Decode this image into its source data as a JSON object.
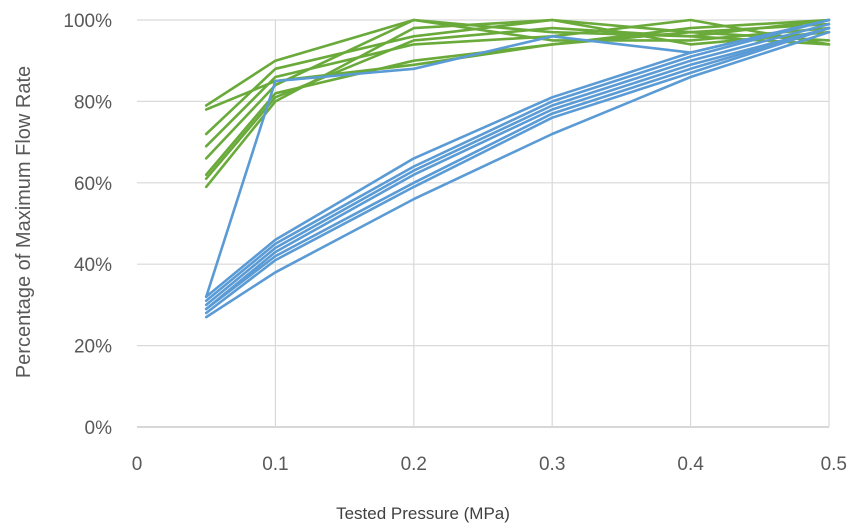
{
  "chart_data": {
    "type": "line",
    "xlabel": "Tested Pressure (MPa)",
    "ylabel": "Percentage of Maximum Flow Rate",
    "xlim": [
      0,
      0.5
    ],
    "ylim": [
      0,
      100
    ],
    "x_ticks": [
      "0",
      "0.1",
      "0.2",
      "0.3",
      "0.4",
      "0.5"
    ],
    "y_ticks": [
      "0%",
      "20%",
      "40%",
      "60%",
      "80%",
      "100%"
    ],
    "grid": "vertical and horizontal",
    "legend": "none",
    "x": [
      0.05,
      0.1,
      0.2,
      0.3,
      0.4,
      0.5
    ],
    "colors": {
      "green": "#6aaa3a",
      "blue": "#5b9bd5",
      "grid": "#d9d9d9",
      "axis": "#bfbfbf"
    },
    "series": [
      {
        "group": "green",
        "values": [
          79,
          90,
          100,
          97,
          96,
          100
        ]
      },
      {
        "group": "green",
        "values": [
          78,
          85,
          89,
          94,
          97,
          95
        ]
      },
      {
        "group": "green",
        "values": [
          72,
          88,
          96,
          100,
          94,
          97
        ]
      },
      {
        "group": "green",
        "values": [
          69,
          86,
          94,
          96,
          100,
          94
        ]
      },
      {
        "group": "green",
        "values": [
          66,
          84,
          100,
          95,
          95,
          98
        ]
      },
      {
        "group": "green",
        "values": [
          62,
          82,
          90,
          94,
          98,
          100
        ]
      },
      {
        "group": "green",
        "values": [
          61,
          81,
          95,
          98,
          96,
          94
        ]
      },
      {
        "group": "green",
        "values": [
          59,
          80,
          98,
          100,
          97,
          99
        ]
      },
      {
        "group": "blue",
        "values": [
          32,
          85,
          88,
          96,
          92,
          100
        ]
      },
      {
        "group": "blue",
        "values": [
          32,
          46,
          66,
          81,
          92,
          100
        ]
      },
      {
        "group": "blue",
        "values": [
          31,
          45,
          64,
          80,
          91,
          100
        ]
      },
      {
        "group": "blue",
        "values": [
          30,
          44,
          63,
          79,
          90,
          99
        ]
      },
      {
        "group": "blue",
        "values": [
          29,
          43,
          62,
          78,
          89,
          98
        ]
      },
      {
        "group": "blue",
        "values": [
          29,
          42,
          60,
          77,
          88,
          98
        ]
      },
      {
        "group": "blue",
        "values": [
          28,
          41,
          59,
          76,
          87,
          98
        ]
      },
      {
        "group": "blue",
        "values": [
          27,
          38,
          56,
          72,
          86,
          97
        ]
      }
    ]
  }
}
